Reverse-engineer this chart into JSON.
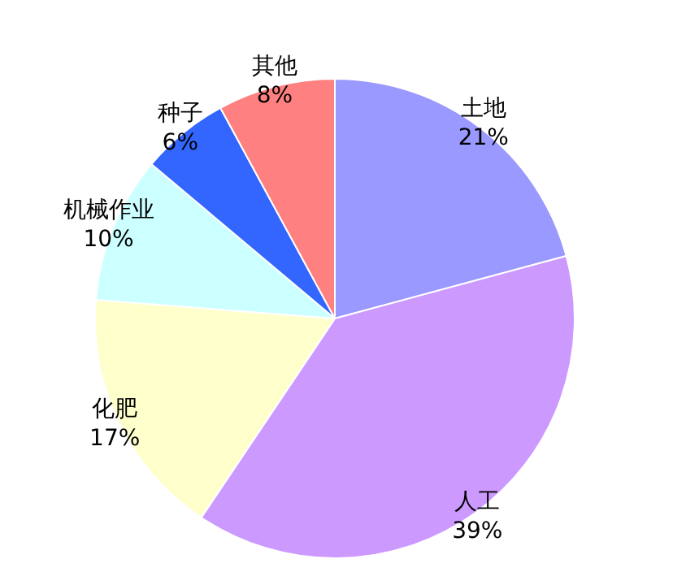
{
  "chart_data": {
    "type": "pie",
    "categories": [
      "土地",
      "人工",
      "化肥",
      "机械作业",
      "种子",
      "其他"
    ],
    "values": [
      21,
      39,
      17,
      10,
      6,
      8
    ],
    "value_labels": [
      "21%",
      "39%",
      "17%",
      "10%",
      "6%",
      "8%"
    ],
    "colors": [
      "#9999ff",
      "#cc99ff",
      "#ffffcc",
      "#ccffff",
      "#3366ff",
      "#ff8080"
    ],
    "legend": false
  }
}
